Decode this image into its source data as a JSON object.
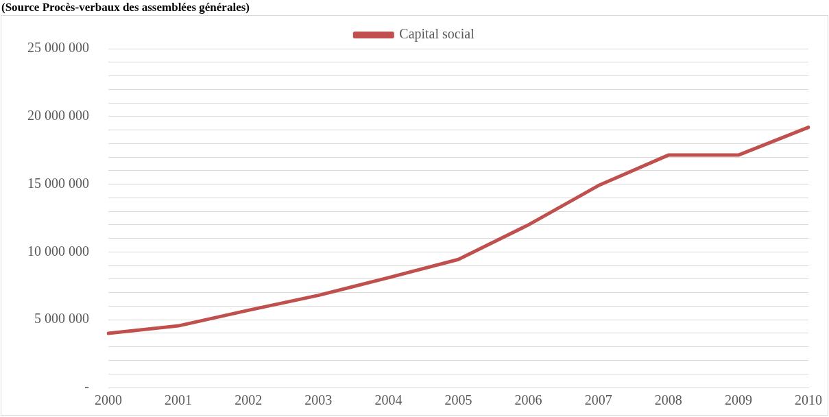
{
  "chart_data": {
    "type": "line",
    "title": "(Source Procès-verbaux des assemblées générales)",
    "categories": [
      "2000",
      "2001",
      "2002",
      "2003",
      "2004",
      "2005",
      "2006",
      "2007",
      "2008",
      "2009",
      "2010"
    ],
    "series": [
      {
        "name": "Capital social",
        "color": "#c0504d",
        "values": [
          4000000,
          4550000,
          5700000,
          6800000,
          8100000,
          9450000,
          12000000,
          14900000,
          17150000,
          17150000,
          19200000
        ]
      }
    ],
    "ylim": [
      0,
      25000000
    ],
    "yticks": [
      {
        "value": 0,
        "label": "-"
      },
      {
        "value": 1000000,
        "label": null
      },
      {
        "value": 2000000,
        "label": null
      },
      {
        "value": 3000000,
        "label": null
      },
      {
        "value": 4000000,
        "label": null
      },
      {
        "value": 5000000,
        "label": "5 000 000"
      },
      {
        "value": 6000000,
        "label": null
      },
      {
        "value": 7000000,
        "label": null
      },
      {
        "value": 8000000,
        "label": null
      },
      {
        "value": 9000000,
        "label": null
      },
      {
        "value": 10000000,
        "label": "10 000 000"
      },
      {
        "value": 11000000,
        "label": null
      },
      {
        "value": 12000000,
        "label": null
      },
      {
        "value": 13000000,
        "label": null
      },
      {
        "value": 14000000,
        "label": null
      },
      {
        "value": 15000000,
        "label": "15 000 000"
      },
      {
        "value": 16000000,
        "label": null
      },
      {
        "value": 17000000,
        "label": null
      },
      {
        "value": 18000000,
        "label": null
      },
      {
        "value": 19000000,
        "label": null
      },
      {
        "value": 20000000,
        "label": "20 000 000"
      },
      {
        "value": 21000000,
        "label": null
      },
      {
        "value": 22000000,
        "label": null
      },
      {
        "value": 23000000,
        "label": null
      },
      {
        "value": 24000000,
        "label": null
      },
      {
        "value": 25000000,
        "label": "25 000 000"
      }
    ],
    "grid": "y",
    "legend": "top",
    "marker": "none",
    "line_style": "solid"
  }
}
